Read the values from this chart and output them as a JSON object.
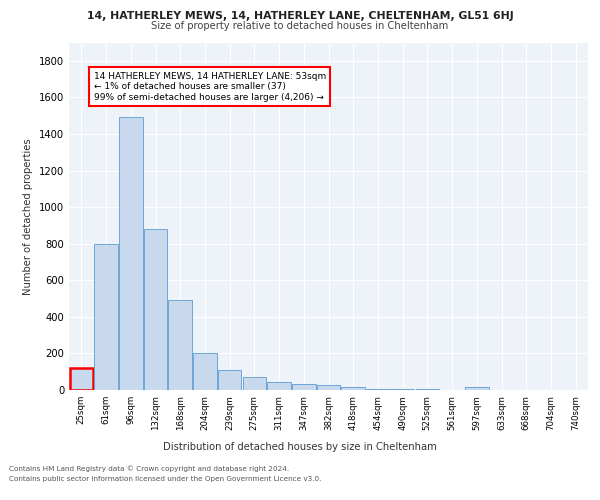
{
  "title_line1": "14, HATHERLEY MEWS, 14, HATHERLEY LANE, CHELTENHAM, GL51 6HJ",
  "title_line2": "Size of property relative to detached houses in Cheltenham",
  "xlabel": "Distribution of detached houses by size in Cheltenham",
  "ylabel": "Number of detached properties",
  "bin_labels": [
    "25sqm",
    "61sqm",
    "96sqm",
    "132sqm",
    "168sqm",
    "204sqm",
    "239sqm",
    "275sqm",
    "311sqm",
    "347sqm",
    "382sqm",
    "418sqm",
    "454sqm",
    "490sqm",
    "525sqm",
    "561sqm",
    "597sqm",
    "633sqm",
    "668sqm",
    "704sqm",
    "740sqm"
  ],
  "bar_heights": [
    120,
    800,
    1490,
    880,
    490,
    200,
    110,
    70,
    45,
    32,
    25,
    15,
    8,
    5,
    3,
    2,
    18,
    0,
    0,
    0,
    0
  ],
  "bar_color": "#c9d9ed",
  "bar_edge_color": "#5b9bd5",
  "highlight_bar_index": 0,
  "highlight_edge_color": "#ff0000",
  "annotation_text": "14 HATHERLEY MEWS, 14 HATHERLEY LANE: 53sqm\n← 1% of detached houses are smaller (37)\n99% of semi-detached houses are larger (4,206) →",
  "annotation_box_color": "#ffffff",
  "annotation_box_edge_color": "#ff0000",
  "ylim": [
    0,
    1900
  ],
  "yticks": [
    0,
    200,
    400,
    600,
    800,
    1000,
    1200,
    1400,
    1600,
    1800
  ],
  "footer_line1": "Contains HM Land Registry data © Crown copyright and database right 2024.",
  "footer_line2": "Contains public sector information licensed under the Open Government Licence v3.0.",
  "plot_bg_color": "#eef3f9"
}
